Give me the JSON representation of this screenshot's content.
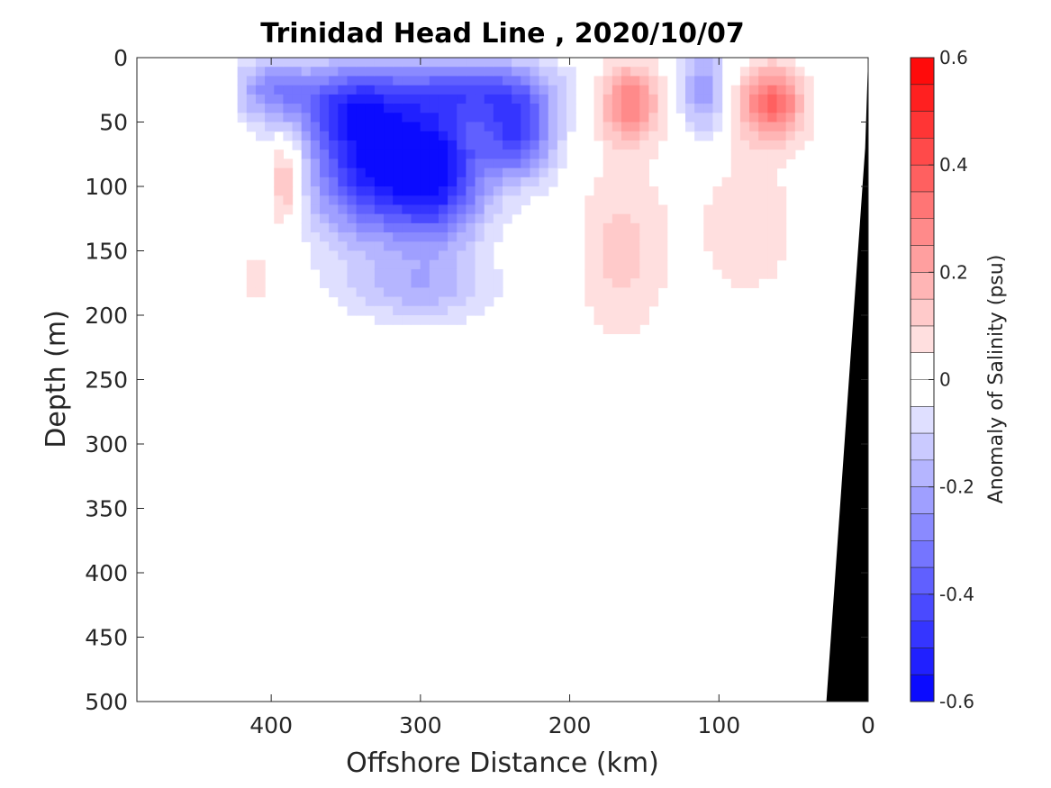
{
  "chart_data": {
    "type": "heatmap",
    "title": "Trinidad Head Line , 2020/10/07",
    "xlabel": "Offshore Distance (km)",
    "ylabel": "Depth (m)",
    "xlim": [
      490,
      0
    ],
    "ylim": [
      0,
      500
    ],
    "x_reversed": true,
    "y_reversed": true,
    "xticks": [
      "400",
      "300",
      "200",
      "100",
      "0"
    ],
    "xtick_values": [
      400,
      300,
      200,
      100,
      0
    ],
    "yticks": [
      "0",
      "50",
      "100",
      "150",
      "200",
      "250",
      "300",
      "350",
      "400",
      "450",
      "500"
    ],
    "ytick_values": [
      0,
      50,
      100,
      150,
      200,
      250,
      300,
      350,
      400,
      450,
      500
    ],
    "colorbar": {
      "label": "Anomaly of Salinity (psu)",
      "range": [
        -0.6,
        0.6
      ],
      "ticks": [
        "0.6",
        "0.4",
        "0.2",
        "0",
        "-0.2",
        "-0.4",
        "-0.6"
      ],
      "tick_values": [
        0.6,
        0.4,
        0.2,
        0,
        -0.2,
        -0.4,
        -0.6
      ],
      "levels": 24,
      "positive_color": "#ff0000",
      "negative_color": "#0000ff",
      "zero_color": "#ffffff"
    },
    "anomalies": [
      {
        "x": 330,
        "depth": 80,
        "sx": 45,
        "sd": 60,
        "value": -0.55
      },
      {
        "x": 285,
        "depth": 90,
        "sx": 30,
        "sd": 55,
        "value": -0.4
      },
      {
        "x": 350,
        "depth": 35,
        "sx": 35,
        "sd": 30,
        "value": -0.25
      },
      {
        "x": 235,
        "depth": 60,
        "sx": 25,
        "sd": 35,
        "value": -0.4
      },
      {
        "x": 260,
        "depth": 25,
        "sx": 50,
        "sd": 25,
        "value": -0.3
      },
      {
        "x": 110,
        "depth": 25,
        "sx": 15,
        "sd": 35,
        "value": -0.25
      },
      {
        "x": 400,
        "depth": 25,
        "sx": 25,
        "sd": 25,
        "value": -0.25
      },
      {
        "x": 300,
        "depth": 180,
        "sx": 50,
        "sd": 25,
        "value": -0.15
      },
      {
        "x": 160,
        "depth": 35,
        "sx": 20,
        "sd": 30,
        "value": 0.3
      },
      {
        "x": 65,
        "depth": 35,
        "sx": 22,
        "sd": 28,
        "value": 0.35
      },
      {
        "x": 390,
        "depth": 95,
        "sx": 12,
        "sd": 35,
        "value": 0.22
      },
      {
        "x": 165,
        "depth": 150,
        "sx": 30,
        "sd": 70,
        "value": 0.12
      },
      {
        "x": 80,
        "depth": 130,
        "sx": 40,
        "sd": 70,
        "value": 0.08
      },
      {
        "x": 410,
        "depth": 170,
        "sx": 10,
        "sd": 30,
        "value": 0.08
      }
    ]
  }
}
